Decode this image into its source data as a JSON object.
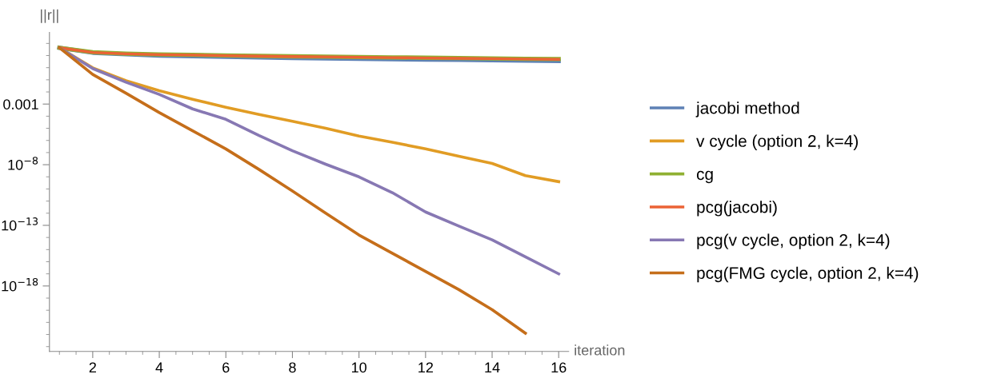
{
  "chart_data": {
    "type": "line",
    "xlabel": "iteration",
    "ylabel": "||r||",
    "log": "y",
    "grid": false,
    "legend": "right",
    "marker": "none",
    "line_style": "solid",
    "x": [
      1,
      2,
      3,
      4,
      5,
      6,
      7,
      8,
      9,
      10,
      11,
      12,
      13,
      14,
      15,
      16
    ],
    "xlim": [
      0.7,
      16.3
    ],
    "xticks": [
      2,
      4,
      6,
      8,
      10,
      12,
      14,
      16
    ],
    "ylim": [
      4e-24,
      800
    ],
    "yticks": [
      0.001,
      {
        "value": 1e-08,
        "label": "10$^{−8}$"
      },
      {
        "value": 1e-13,
        "label": "10$^{−13}$"
      },
      {
        "value": 1e-18,
        "label": "10$^{−18}$"
      }
    ],
    "series": [
      {
        "name": "jacobi method",
        "color": "#5e81b5",
        "values": [
          44,
          17,
          13,
          10,
          8.9,
          7.9,
          7.1,
          6.3,
          5.9,
          5.4,
          5.0,
          4.7,
          4.4,
          4.1,
          3.8,
          3.5
        ]
      },
      {
        "name": "v cycle (option 2, k=4)",
        "color": "#e19c24",
        "values": [
          44,
          0.98,
          0.085,
          0.0126,
          0.0025,
          0.00055,
          0.00014,
          3.8e-05,
          1e-05,
          2.3e-06,
          7.1e-07,
          2e-07,
          5e-08,
          1.26e-08,
          1.26e-09,
          4e-10
        ]
      },
      {
        "name": "cg",
        "color": "#8fb032",
        "values": [
          44,
          18.5,
          14.5,
          12.5,
          11.3,
          10.2,
          9.3,
          8.6,
          8.1,
          7.5,
          7.1,
          6.6,
          6.2,
          5.8,
          5.4,
          5.2
        ]
      },
      {
        "name": "pcg(jacobi)",
        "color": "#eb6235",
        "values": [
          44,
          18,
          14,
          12,
          11,
          9.8,
          8.9,
          8.3,
          7.8,
          7.2,
          6.8,
          6.3,
          5.9,
          5.5,
          5.1,
          4.9
        ]
      },
      {
        "name": "pcg(v cycle, option 2, k=4)",
        "color": "#8778b3",
        "values": [
          44,
          0.85,
          0.063,
          0.0063,
          0.0004,
          5.5e-05,
          2.5e-06,
          1.4e-07,
          1.1e-08,
          1e-09,
          5e-11,
          1.26e-12,
          8.7e-14,
          6.3e-15,
          2.5e-16,
          1e-17
        ]
      },
      {
        "name": "pcg(FMG cycle, option 2, k=4)",
        "color": "#c56e1a",
        "values": [
          44,
          0.28,
          0.0079,
          0.0002,
          6.3e-06,
          2e-07,
          4e-09,
          6.8e-11,
          1e-12,
          1.6e-14,
          5e-16,
          1.6e-17,
          5e-19,
          1.1e-20,
          1.26e-22,
          null
        ]
      }
    ]
  }
}
